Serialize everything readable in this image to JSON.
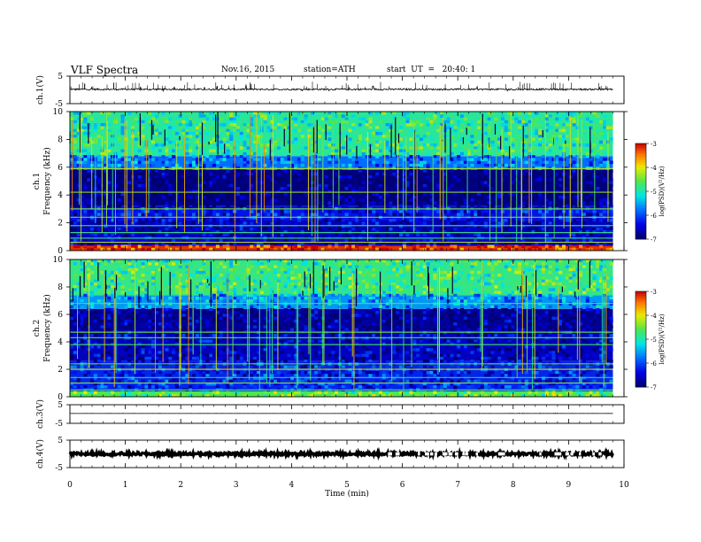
{
  "header": {
    "title": "VLF  Spectra",
    "date": "Nov.16, 2015",
    "station": "station=ATH",
    "start": "start  UT  =   20:40: 1"
  },
  "chart_data": {
    "type": "heatmap",
    "xlabel": "Time  (min)",
    "xlim": [
      0,
      10
    ],
    "xticks": [
      "0",
      "1",
      "2",
      "3",
      "4",
      "5",
      "6",
      "7",
      "8",
      "9",
      "10"
    ],
    "data_end_min": 9.8,
    "panels": [
      {
        "id": "ch1-waveform",
        "type": "line",
        "ylabel": "ch.1(V)",
        "ylim": [
          -5,
          5
        ],
        "yticks": [
          "5",
          "-5"
        ],
        "baseline_v": 0.2,
        "noise_v": 0.3
      },
      {
        "id": "ch1-spectrogram",
        "type": "heatmap",
        "ylabel_line1": "ch.1",
        "ylabel_line2": "Frequency  (kHz)",
        "ylim_khz": [
          0,
          10
        ],
        "yticks": [
          "0",
          "2",
          "4",
          "6",
          "8",
          "10"
        ],
        "colorbar_label": "log(PSD)(V²/Hz)",
        "colorbar_range": [
          -7,
          -3
        ],
        "colorbar_ticks": [
          "-3",
          "-4",
          "-5",
          "-6",
          "-7"
        ],
        "bands_khz": [
          {
            "from": 0,
            "to": 0.35,
            "level": -3.2
          },
          {
            "from": 0.35,
            "to": 2.2,
            "level": -6.6
          },
          {
            "from": 2.2,
            "to": 3.2,
            "level": -6.3
          },
          {
            "from": 3.2,
            "to": 5.8,
            "level": -6.9
          },
          {
            "from": 5.8,
            "to": 6.8,
            "level": -5.8
          },
          {
            "from": 6.8,
            "to": 10,
            "level": -4.9
          }
        ]
      },
      {
        "id": "ch2-spectrogram",
        "type": "heatmap",
        "ylabel_line1": "ch.2",
        "ylabel_line2": "Frequency  (kHz)",
        "ylim_khz": [
          0,
          10
        ],
        "yticks": [
          "0",
          "2",
          "4",
          "6",
          "8",
          "10"
        ],
        "colorbar_label": "log(PSD)(V²/Hz)",
        "colorbar_range": [
          -7,
          -3
        ],
        "colorbar_ticks": [
          "-3",
          "-4",
          "-5",
          "-6",
          "-7"
        ],
        "bands_khz": [
          {
            "from": 0,
            "to": 0.4,
            "level": -4.6
          },
          {
            "from": 0.4,
            "to": 2.6,
            "level": -6.2
          },
          {
            "from": 2.6,
            "to": 4.8,
            "level": -6.6
          },
          {
            "from": 4.8,
            "to": 6.4,
            "level": -6.8
          },
          {
            "from": 6.4,
            "to": 7.4,
            "level": -5.6
          },
          {
            "from": 7.4,
            "to": 10,
            "level": -4.8
          }
        ]
      },
      {
        "id": "ch3-waveform",
        "type": "line",
        "ylabel": "ch.3(V)",
        "ylim": [
          -5,
          5
        ],
        "yticks": [
          "5",
          "-5"
        ],
        "baseline_v": 0.3,
        "noise_v": 0.02
      },
      {
        "id": "ch4-waveform",
        "type": "line",
        "ylabel": "ch.4(V)",
        "ylim": [
          -5,
          5
        ],
        "yticks": [
          "5",
          "-5"
        ],
        "baseline_v": 0.0,
        "noise_v": 0.5
      }
    ]
  }
}
